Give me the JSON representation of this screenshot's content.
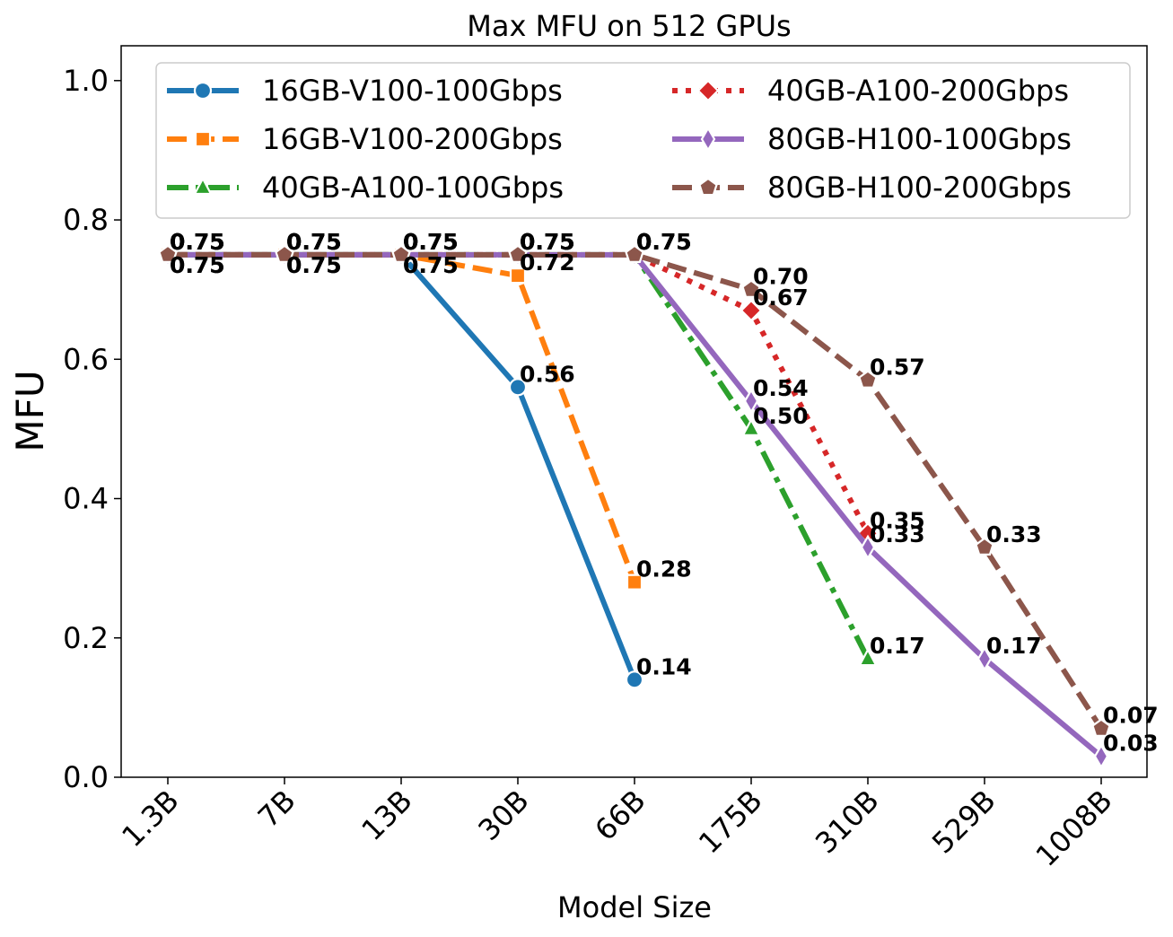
{
  "chart_data": {
    "type": "line",
    "title": "Max MFU on 512 GPUs",
    "xlabel": "Model Size",
    "ylabel": "MFU",
    "categories": [
      "1.3B",
      "7B",
      "13B",
      "30B",
      "66B",
      "175B",
      "310B",
      "529B",
      "1008B"
    ],
    "ylim": [
      0,
      1.05
    ],
    "yticks": [
      "0.0",
      "0.2",
      "0.4",
      "0.6",
      "0.8",
      "1.0"
    ],
    "legend_position": "top-right",
    "series": [
      {
        "name": "16GB-V100-100Gbps",
        "color": "#1f77b4",
        "dash": "solid",
        "marker": "circle",
        "values": [
          0.75,
          0.75,
          0.75,
          0.56,
          0.14,
          null,
          null,
          null,
          null
        ],
        "labels": [
          "0.75",
          "0.75",
          "0.75",
          "0.56",
          "0.14",
          null,
          null,
          null,
          null
        ]
      },
      {
        "name": "16GB-V100-200Gbps",
        "color": "#ff7f0e",
        "dash": "dashed",
        "marker": "square",
        "values": [
          0.75,
          0.75,
          0.75,
          0.72,
          0.28,
          null,
          null,
          null,
          null
        ],
        "labels": [
          "0.75",
          "0.75",
          "0.75",
          "0.72",
          "0.28",
          null,
          null,
          null,
          null
        ]
      },
      {
        "name": "40GB-A100-100Gbps",
        "color": "#2ca02c",
        "dash": "dashdot",
        "marker": "triangle",
        "values": [
          0.75,
          0.75,
          0.75,
          0.75,
          0.75,
          0.5,
          0.17,
          null,
          null
        ],
        "labels": [
          "0.75",
          "0.75",
          "0.75",
          "0.75",
          "0.75",
          "0.50",
          "0.17",
          null,
          null
        ]
      },
      {
        "name": "40GB-A100-200Gbps",
        "color": "#d62728",
        "dash": "dotted",
        "marker": "diamond",
        "values": [
          0.75,
          0.75,
          0.75,
          0.75,
          0.75,
          0.67,
          0.35,
          null,
          null
        ],
        "labels": [
          "0.75",
          "0.75",
          "0.75",
          "0.75",
          "0.75",
          "0.67",
          "0.35",
          null,
          null
        ]
      },
      {
        "name": "80GB-H100-100Gbps",
        "color": "#9467bd",
        "dash": "solid",
        "marker": "thin_diamond",
        "values": [
          0.75,
          0.75,
          0.75,
          0.75,
          0.75,
          0.54,
          0.33,
          0.17,
          0.03
        ],
        "labels": [
          "0.75",
          "0.75",
          "0.75",
          "0.75",
          "0.75",
          "0.54",
          "0.33",
          "0.17",
          "0.03"
        ]
      },
      {
        "name": "80GB-H100-200Gbps",
        "color": "#8c564b",
        "dash": "dashed",
        "marker": "pentagon",
        "values": [
          0.75,
          0.75,
          0.75,
          0.75,
          0.75,
          0.7,
          0.57,
          0.33,
          0.07
        ],
        "labels": [
          "0.75",
          "0.75",
          "0.75",
          "0.75",
          "0.75",
          "0.70",
          "0.57",
          "0.33",
          "0.07"
        ]
      }
    ]
  }
}
